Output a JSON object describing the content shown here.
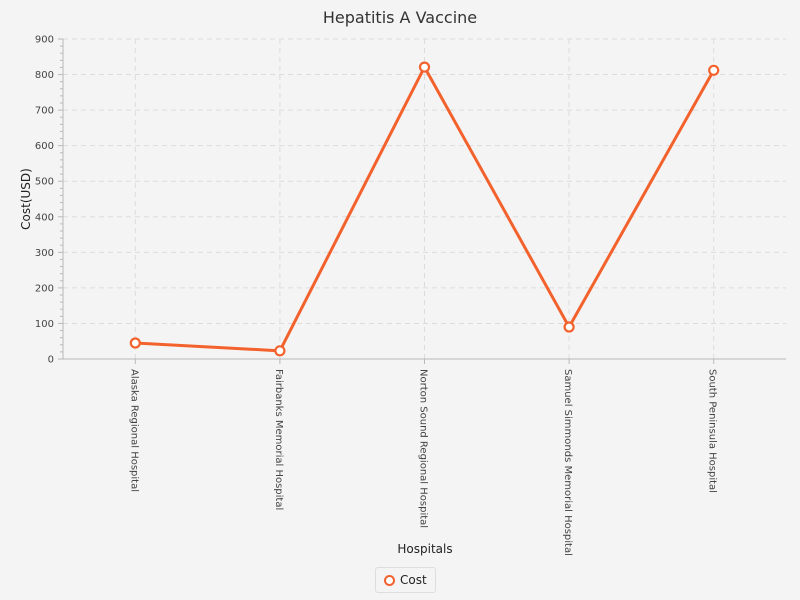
{
  "chart_data": {
    "type": "line",
    "title": "Hepatitis A Vaccine",
    "xlabel": "Hospitals",
    "ylabel": "Cost(USD)",
    "categories": [
      "Alaska Regional Hospital",
      "Fairbanks Memorial Hospital",
      "Norton Sound Regional Hospital",
      "Samuel Simmonds Memorial Hospital",
      "South Peninsula Hospital"
    ],
    "series": [
      {
        "name": "Cost",
        "values": [
          45,
          23,
          821,
          90,
          812
        ],
        "color": "#f3622d"
      }
    ],
    "ylim": [
      0,
      900
    ],
    "yticks": [
      "0",
      "100",
      "200",
      "300",
      "400",
      "500",
      "600",
      "700",
      "800",
      "900"
    ],
    "grid": true,
    "legend_position": "bottom-center"
  }
}
